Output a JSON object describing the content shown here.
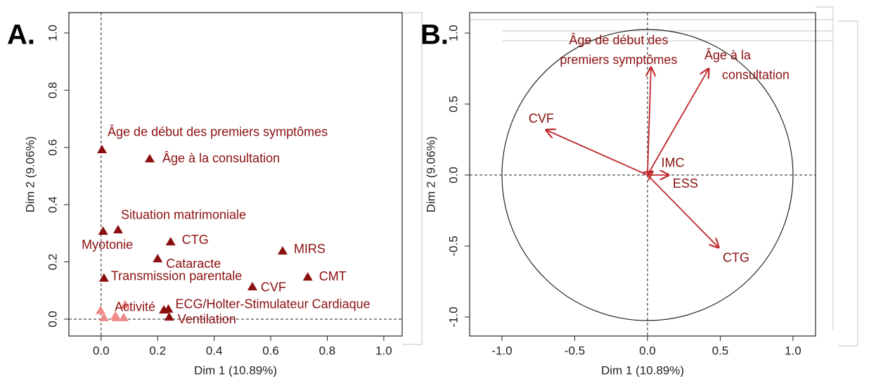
{
  "chart_data": [
    {
      "type": "scatter",
      "annotation": "A.",
      "xlabel": "Dim 1 (10.89%)",
      "ylabel": "Dim 2 (9.06%)",
      "xlim": [
        -0.114,
        1.065
      ],
      "ylim": [
        -0.059,
        1.071
      ],
      "xticks": [
        {
          "value": 0,
          "label": "0.0"
        },
        0.2,
        0.4,
        0.6,
        0.8,
        {
          "value": 1,
          "label": "1.0"
        }
      ],
      "yticks": [
        {
          "value": 0,
          "label": "0.0"
        },
        0.2,
        0.4,
        0.6,
        0.8,
        {
          "value": 1,
          "label": "1.0"
        }
      ],
      "hline": 0,
      "vline": 0,
      "series": [
        {
          "color": "#8b0f0f",
          "x": [
            0.003,
            0.172,
            0.06,
            0.007,
            0.246,
            0.642,
            0.2,
            0.01,
            0.731,
            0.535,
            0.238,
            0.222,
            0.241
          ],
          "values": [
            0.592,
            0.56,
            0.312,
            0.307,
            0.27,
            0.238,
            0.211,
            0.143,
            0.147,
            0.113,
            0.035,
            0.032,
            0.007
          ],
          "labels": [
            "Âge de début des premiers symptômes",
            "Âge à la consultation",
            "Situation matrimoniale",
            "Myotonie",
            "CTG",
            "MIRS",
            "Cataracte",
            "Transmission parentale",
            "CMT",
            "CVF",
            "ECG/Holter-Stimulateur Cardiaque",
            null,
            "Ventilation"
          ]
        },
        {
          "color": "#ee8a8a",
          "x": [
            -0.002,
            0.01,
            0.05,
            0.055,
            0.08,
            0.085
          ],
          "values": [
            0.03,
            0.005,
            0.01,
            0.005,
            0.005,
            0.05
          ],
          "labels": [
            null,
            null,
            null,
            null,
            null,
            "Activité"
          ]
        }
      ]
    },
    {
      "type": "vector",
      "annotation": "B.",
      "xlabel": "Dim 1 (10.89%)",
      "ylabel": "Dim 2 (9.06%)",
      "xlim": [
        -1.222,
        1.155
      ],
      "ylim": [
        -1.134,
        1.144
      ],
      "xticks": [
        {
          "value": -1,
          "label": "-1.0"
        },
        -0.5,
        {
          "value": 0,
          "label": "0.0"
        },
        0.5,
        {
          "value": 1,
          "label": "1.0"
        }
      ],
      "yticks": [
        {
          "value": -1,
          "label": "-1.0"
        },
        -0.5,
        {
          "value": 0,
          "label": "0.0"
        },
        0.5,
        {
          "value": 1,
          "label": "1.0"
        }
      ],
      "hline": 0,
      "vline": 0,
      "circle_radius": 1,
      "color": "#c0282d",
      "label_color": "#8b0f0f",
      "x": [
        0.024,
        0.42,
        -0.696,
        0.034,
        0.145,
        0.488
      ],
      "values": [
        0.757,
        0.748,
        0.317,
        0.025,
        0.0,
        -0.51
      ],
      "labels": [
        [
          "Âge de début des",
          "premiers symptômes"
        ],
        [
          "Âge à la",
          "consultation"
        ],
        [
          "CVF"
        ],
        [
          "IMC"
        ],
        [
          "ESS"
        ],
        [
          "CTG"
        ]
      ]
    }
  ]
}
